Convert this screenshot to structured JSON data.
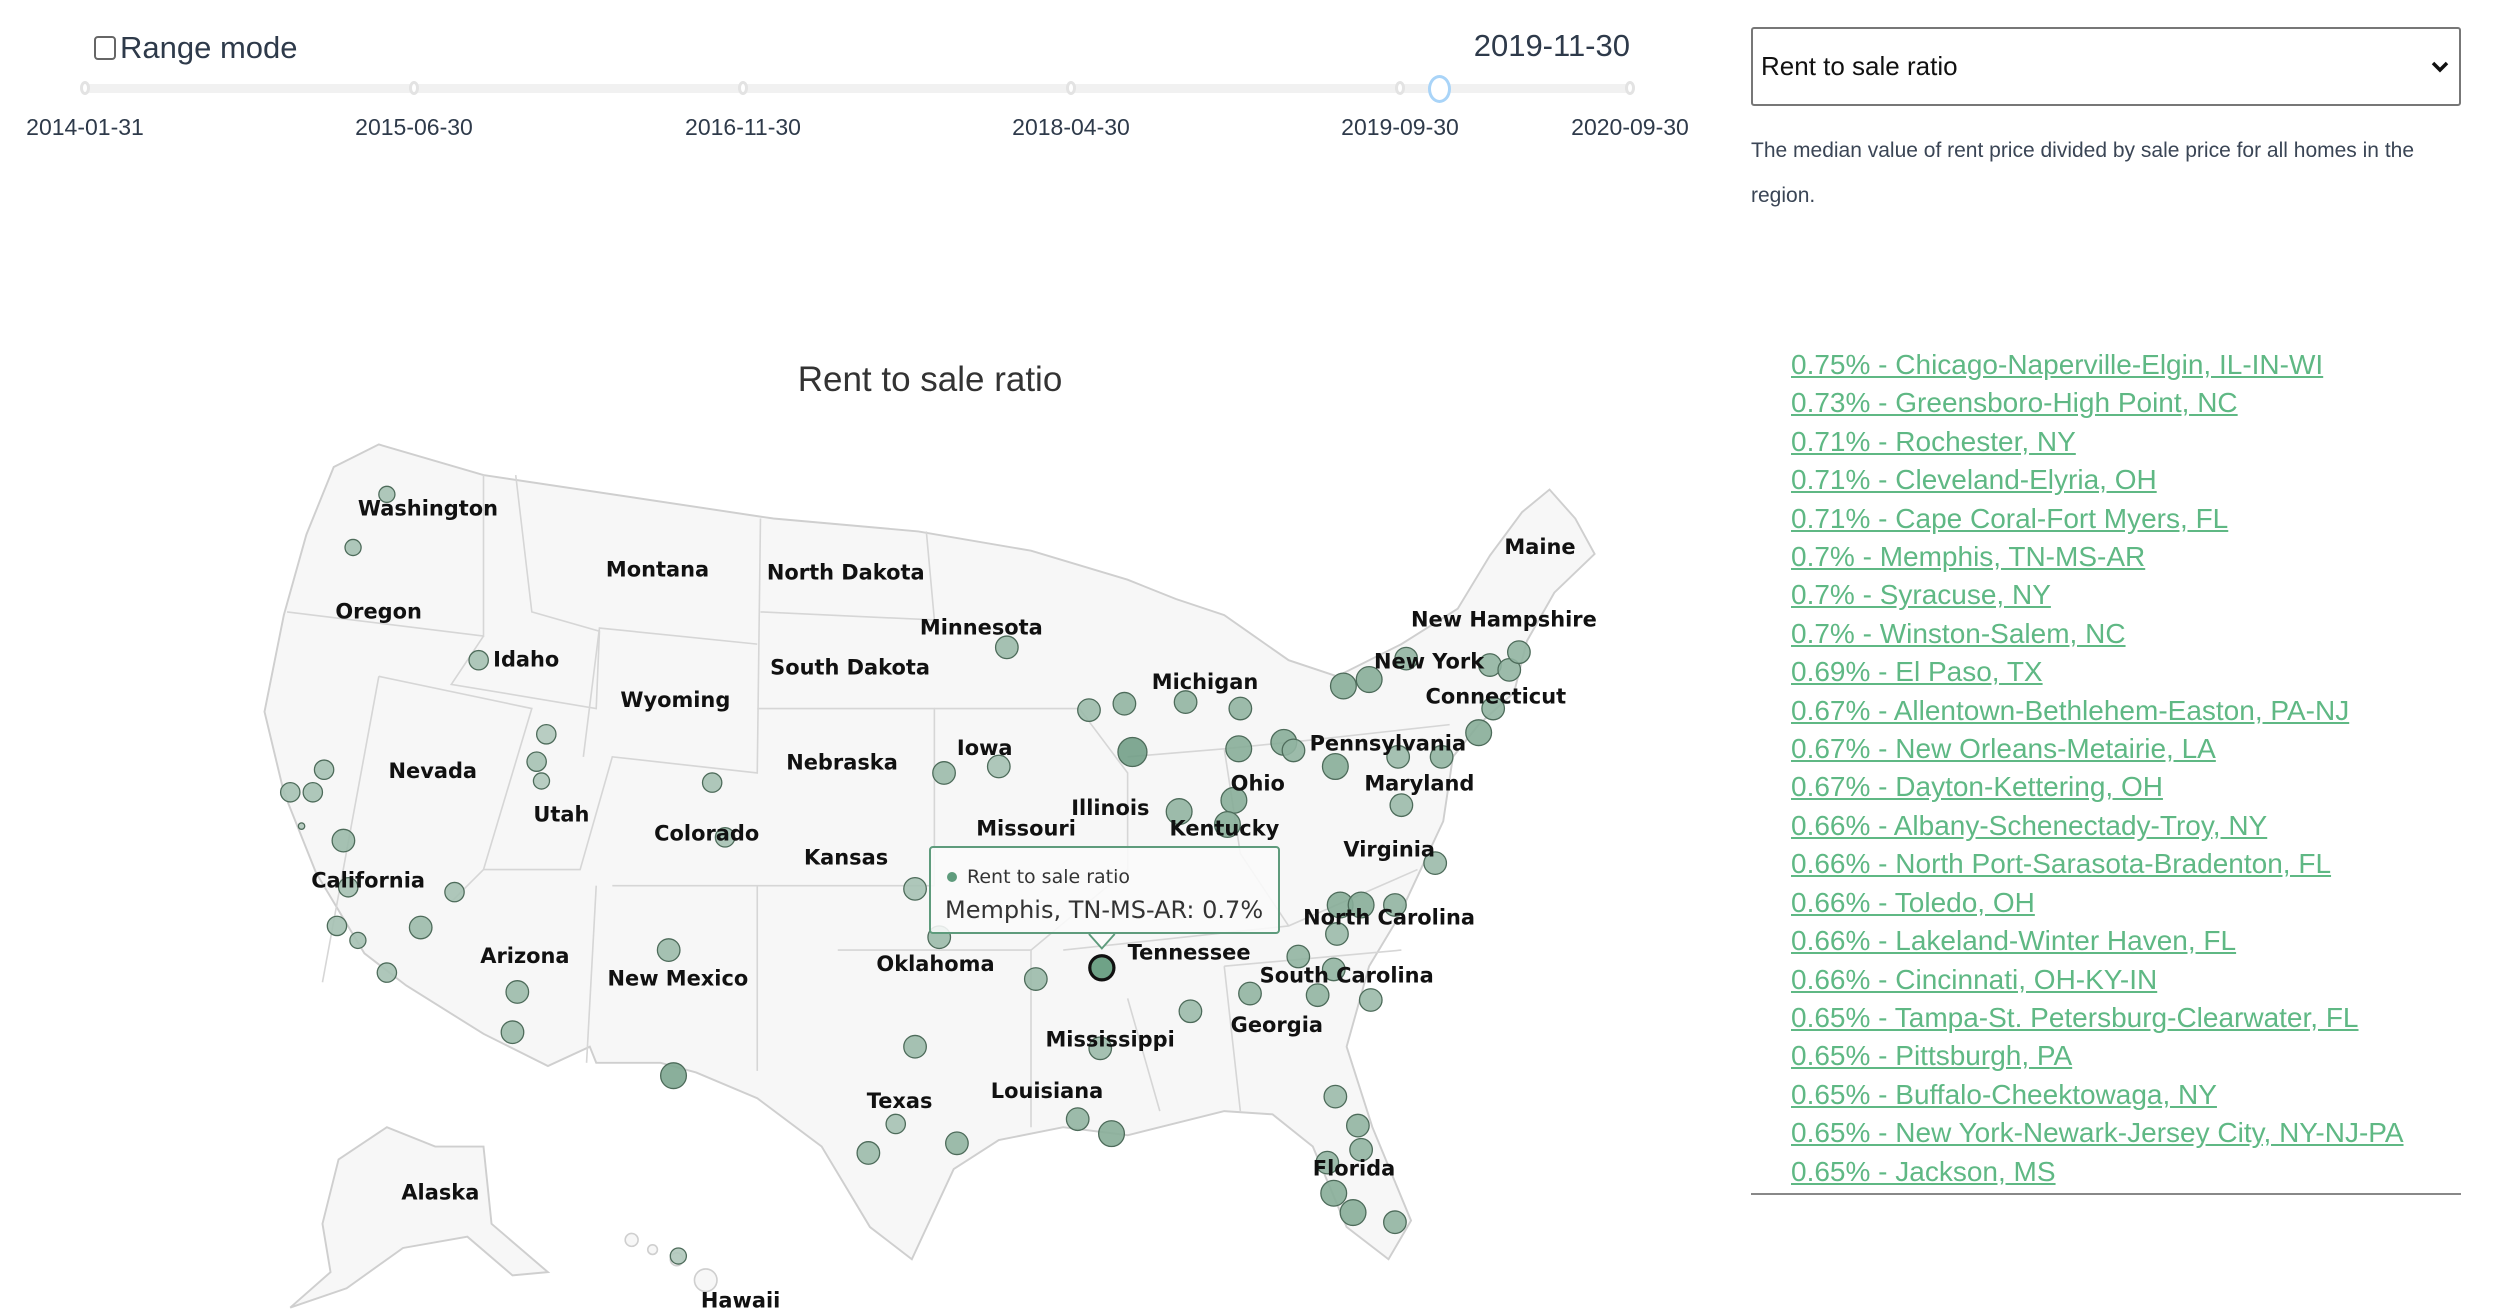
{
  "controls": {
    "range_mode_label": "Range mode",
    "range_mode_checked": false,
    "current_date": "2019-11-30",
    "timeline_ticks": [
      "2014-01-31",
      "2015-06-30",
      "2016-11-30",
      "2018-04-30",
      "2019-09-30",
      "2020-09-30"
    ],
    "slider_color": "#a9d4f8"
  },
  "metric": {
    "selected": "Rent to sale ratio",
    "description": "The median value of rent price divided by sale price for all homes in the region."
  },
  "map": {
    "title": "Rent to sale ratio",
    "bubble_color": "#5e9b7c",
    "state_labels": [
      "Washington",
      "Montana",
      "North Dakota",
      "Oregon",
      "Minnesota",
      "Idaho",
      "South Dakota",
      "Wyoming",
      "Michigan",
      "Maine",
      "New Hampshire",
      "New York",
      "Connecticut",
      "Nevada",
      "Iowa",
      "Nebraska",
      "Pennsylvania",
      "Utah",
      "Illinois",
      "Ohio",
      "Maryland",
      "Colorado",
      "Kansas",
      "Virginia",
      "California",
      "Missouri",
      "Kentucky",
      "North Carolina",
      "Tennessee",
      "Arizona",
      "Oklahoma",
      "New Mexico",
      "South Carolina",
      "Georgia",
      "Mississippi",
      "Texas",
      "Louisiana",
      "Florida",
      "Alaska",
      "Hawaii"
    ],
    "tooltip": {
      "series": "Rent to sale ratio",
      "text": "Memphis, TN-MS-AR: 0.7%"
    },
    "highlighted": "Memphis, TN-MS-AR"
  },
  "ranking": {
    "link_color": "#5fb884",
    "items": [
      "0.75% - Chicago-Naperville-Elgin, IL-IN-WI",
      "0.73% - Greensboro-High Point, NC",
      "0.71% - Rochester, NY",
      "0.71% - Cleveland-Elyria, OH",
      "0.71% - Cape Coral-Fort Myers, FL",
      "0.7% - Memphis, TN-MS-AR",
      "0.7% - Syracuse, NY",
      "0.7% - Winston-Salem, NC",
      "0.69% - El Paso, TX",
      "0.67% - Allentown-Bethlehem-Easton, PA-NJ",
      "0.67% - New Orleans-Metairie, LA",
      "0.67% - Dayton-Kettering, OH",
      "0.66% - Albany-Schenectady-Troy, NY",
      "0.66% - North Port-Sarasota-Bradenton, FL",
      "0.66% - Toledo, OH",
      "0.66% - Lakeland-Winter Haven, FL",
      "0.66% - Cincinnati, OH-KY-IN",
      "0.65% - Tampa-St. Petersburg-Clearwater, FL",
      "0.65% - Pittsburgh, PA",
      "0.65% - Buffalo-Cheektowaga, NY",
      "0.65% - New York-Newark-Jersey City, NY-NJ-PA",
      "0.65% - Jackson, MS"
    ]
  }
}
